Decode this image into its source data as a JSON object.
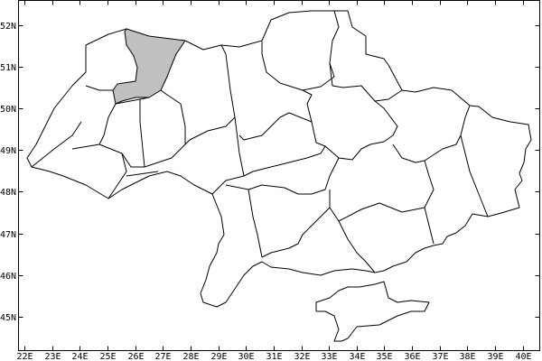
{
  "map": {
    "x_ticks": [
      "22E",
      "23E",
      "24E",
      "25E",
      "26E",
      "27E",
      "28E",
      "29E",
      "30E",
      "31E",
      "32E",
      "33E",
      "34E",
      "35E",
      "36E",
      "37E",
      "38E",
      "39E",
      "40E"
    ],
    "x_tick_values": [
      22,
      23,
      24,
      25,
      26,
      27,
      28,
      29,
      30,
      31,
      32,
      33,
      34,
      35,
      36,
      37,
      38,
      39,
      40
    ],
    "y_ticks": [
      "52N",
      "51N",
      "50N",
      "49N",
      "48N",
      "47N",
      "46N",
      "45N"
    ],
    "y_tick_values": [
      52,
      51,
      50,
      49,
      48,
      47,
      46,
      45
    ],
    "highlight_color": "#c0c0c0",
    "border_color": "#000000",
    "background_color": "#ffffff"
  }
}
